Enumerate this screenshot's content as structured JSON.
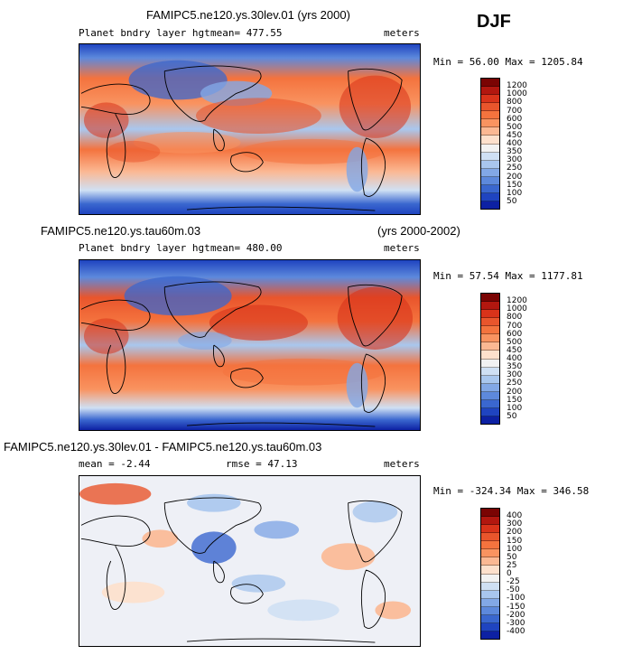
{
  "season": "DJF",
  "panels": [
    {
      "title": "FAMIPC5.ne120.ys.30lev.01 (yrs 2000)",
      "left_label": "Planet bndry layer hgt",
      "mean_label": "mean= 477.55",
      "units": "meters",
      "minmax": "Min =  56.00 Max = 1205.84",
      "colorbar_labels": [
        "1200",
        "1000",
        "800",
        "700",
        "600",
        "500",
        "450",
        "400",
        "350",
        "300",
        "250",
        "200",
        "150",
        "100",
        "50"
      ]
    },
    {
      "title": "FAMIPC5.ne120.ys.tau60m.03",
      "years": "(yrs 2000-2002)",
      "left_label": "Planet bndry layer hgt",
      "mean_label": "mean= 480.00",
      "units": "meters",
      "minmax": "Min =  57.54 Max = 1177.81",
      "colorbar_labels": [
        "1200",
        "1000",
        "800",
        "700",
        "600",
        "500",
        "450",
        "400",
        "350",
        "300",
        "250",
        "200",
        "150",
        "100",
        "50"
      ]
    },
    {
      "title": "FAMIPC5.ne120.ys.30lev.01 - FAMIPC5.ne120.ys.tau60m.03",
      "mean_label": "mean =  -2.44",
      "rmse_label": "rmse =  47.13",
      "units": "meters",
      "minmax": "Min = -324.34 Max = 346.58",
      "colorbar_labels": [
        "400",
        "300",
        "200",
        "150",
        "100",
        "50",
        "25",
        "0",
        "-25",
        "-50",
        "-100",
        "-150",
        "-200",
        "-300",
        "-400"
      ]
    }
  ],
  "colors": {
    "abs_scale": [
      "#7a0403",
      "#b2170f",
      "#d9331a",
      "#e9552c",
      "#f4733e",
      "#f99360",
      "#fbb893",
      "#fde0cc",
      "#f2f2f2",
      "#cfe0f4",
      "#a9c7ee",
      "#82a8e6",
      "#5d89dc",
      "#3a67cf",
      "#1f44c0",
      "#0d21a3",
      "#050a7a"
    ],
    "diff_scale": [
      "#7a0403",
      "#b2170f",
      "#d9331a",
      "#e9552c",
      "#f4733e",
      "#f99360",
      "#fbb893",
      "#fde0cc",
      "#f2f2f2",
      "#cfe0f4",
      "#a9c7ee",
      "#82a8e6",
      "#5d89dc",
      "#3a67cf",
      "#1f44c0",
      "#0d21a3",
      "#050a7a"
    ]
  }
}
